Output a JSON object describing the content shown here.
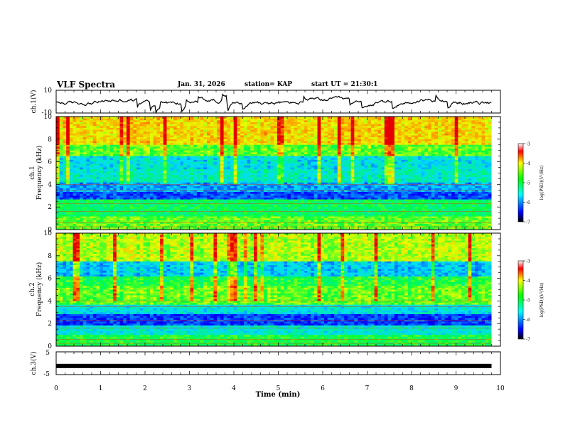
{
  "header": {
    "title": "VLF Spectra",
    "date": "Jan. 31, 2026",
    "station": "station= KAP",
    "start": "start UT = 21:30:1"
  },
  "chart_data": [
    {
      "type": "line",
      "name": "ch1-voltage",
      "ylabel": "ch.1(V)",
      "ylim": [
        -10,
        10
      ],
      "yticks": [
        "10",
        "-10"
      ],
      "xlim": [
        0,
        10
      ]
    },
    {
      "type": "heatmap",
      "name": "ch1-spectrogram",
      "ylabel_line1": "ch.1",
      "ylabel_line2": "Frequency (kHz)",
      "ylim": [
        0,
        10
      ],
      "yticks": [
        "0",
        "2",
        "4",
        "6",
        "8",
        "10"
      ],
      "xlim": [
        0,
        10
      ],
      "data_end_min": 9.8,
      "colorbar": {
        "label": "log(PSD)(V²/Hz)",
        "range": [
          -7,
          -3
        ],
        "ticks": [
          "-3",
          "-4",
          "-5",
          "-6",
          "-7"
        ]
      }
    },
    {
      "type": "heatmap",
      "name": "ch2-spectrogram",
      "ylabel_line1": "ch.2",
      "ylabel_line2": "Frequency (kHz)",
      "ylim": [
        0,
        10
      ],
      "yticks": [
        "0",
        "2",
        "4",
        "6",
        "8",
        "10"
      ],
      "xlim": [
        0,
        10
      ],
      "data_end_min": 9.8,
      "colorbar": {
        "label": "log(PSD)(V²/Hz)",
        "range": [
          -7,
          -3
        ],
        "ticks": [
          "-3",
          "-4",
          "-5",
          "-6",
          "-7"
        ]
      }
    },
    {
      "type": "line",
      "name": "ch3-voltage",
      "ylabel": "ch.3(V)",
      "ylim": [
        -5,
        5
      ],
      "yticks": [
        "5",
        "-5"
      ],
      "xlim": [
        0,
        10
      ],
      "xlabel": "Time (min)",
      "xticks": [
        "0",
        "1",
        "2",
        "3",
        "4",
        "5",
        "6",
        "7",
        "8",
        "9",
        "10"
      ],
      "constant_value": -1.2
    }
  ]
}
